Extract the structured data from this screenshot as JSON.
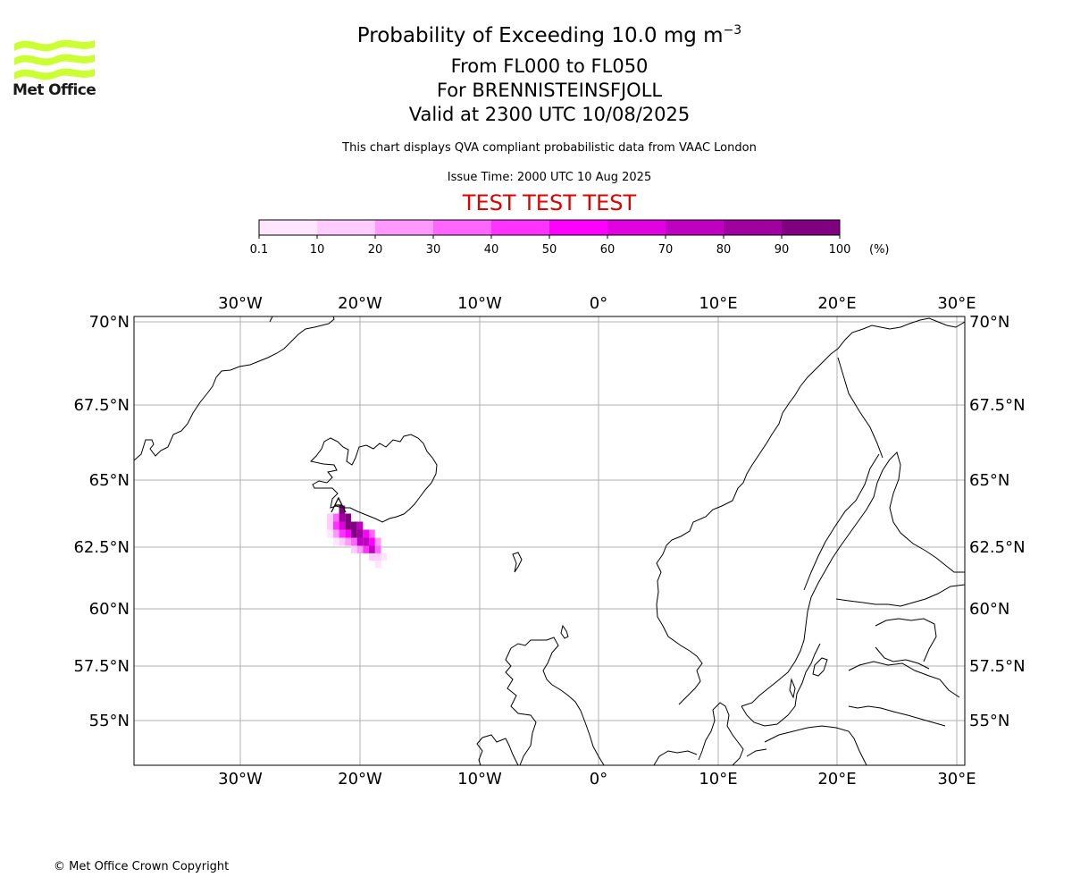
{
  "header": {
    "title_main": "Probability of Exceeding 10.0 mg m",
    "title_exponent": "−3",
    "level_range": "From FL000 to FL050",
    "volcano": "For BRENNISTEINSFJOLL",
    "valid_time": "Valid at 2300 UTC 10/08/2025",
    "note": "This chart displays QVA compliant probabilistic data from VAAC London",
    "issue_time": "Issue Time: 2000 UTC 10 Aug 2025",
    "test_banner": "TEST TEST TEST"
  },
  "logo": {
    "text": "Met Office",
    "color": "#ccff33"
  },
  "colorbar": {
    "ticks": [
      "0.1",
      "10",
      "20",
      "30",
      "40",
      "50",
      "60",
      "70",
      "80",
      "90",
      "100"
    ],
    "unit": "(%)",
    "colors": [
      "#ffe6ff",
      "#ffccff",
      "#ff99ff",
      "#ff66ff",
      "#ff33ff",
      "#ff00ff",
      "#e000e0",
      "#c000c0",
      "#a000a0",
      "#800080",
      "#600060"
    ]
  },
  "map": {
    "lon_labels": [
      "30°W",
      "20°W",
      "10°W",
      "0°",
      "10°E",
      "20°E",
      "30°E"
    ],
    "lat_labels": [
      "70°N",
      "67.5°N",
      "65°N",
      "62.5°N",
      "60°N",
      "57.5°N",
      "55°N"
    ]
  },
  "chart_data": {
    "type": "heatmap",
    "title": "Probability of Exceeding 10.0 mg m−3",
    "xlabel": "",
    "ylabel": "",
    "xlim": [
      -39,
      30.5
    ],
    "ylim": [
      53.3,
      70.2
    ],
    "units": "%",
    "plume_cells": [
      {
        "lon": -21.5,
        "lat": 63.9,
        "p": 95
      },
      {
        "lon": -21.5,
        "lat": 63.6,
        "p": 85
      },
      {
        "lon": -21.0,
        "lat": 63.6,
        "p": 95
      },
      {
        "lon": -21.0,
        "lat": 63.3,
        "p": 95
      },
      {
        "lon": -20.5,
        "lat": 63.3,
        "p": 95
      },
      {
        "lon": -20.5,
        "lat": 63.0,
        "p": 90
      },
      {
        "lon": -20.0,
        "lat": 63.0,
        "p": 85
      },
      {
        "lon": -20.0,
        "lat": 62.7,
        "p": 75
      },
      {
        "lon": -19.5,
        "lat": 62.7,
        "p": 70
      },
      {
        "lon": -19.0,
        "lat": 62.4,
        "p": 75
      },
      {
        "lon": -22.0,
        "lat": 63.3,
        "p": 45
      },
      {
        "lon": -22.0,
        "lat": 63.6,
        "p": 35
      },
      {
        "lon": -21.5,
        "lat": 63.3,
        "p": 65
      },
      {
        "lon": -21.5,
        "lat": 63.0,
        "p": 45
      },
      {
        "lon": -21.0,
        "lat": 63.0,
        "p": 55
      },
      {
        "lon": -21.0,
        "lat": 62.7,
        "p": 25
      },
      {
        "lon": -20.5,
        "lat": 62.7,
        "p": 35
      },
      {
        "lon": -20.0,
        "lat": 62.4,
        "p": 25
      },
      {
        "lon": -20.0,
        "lat": 63.3,
        "p": 75
      },
      {
        "lon": -19.5,
        "lat": 63.0,
        "p": 55
      },
      {
        "lon": -19.0,
        "lat": 63.0,
        "p": 35
      },
      {
        "lon": -19.0,
        "lat": 62.7,
        "p": 55
      },
      {
        "lon": -18.5,
        "lat": 62.7,
        "p": 25
      },
      {
        "lon": -18.5,
        "lat": 62.4,
        "p": 35
      },
      {
        "lon": -19.5,
        "lat": 62.4,
        "p": 45
      },
      {
        "lon": -18.5,
        "lat": 62.1,
        "p": 15
      },
      {
        "lon": -19.0,
        "lat": 62.1,
        "p": 15
      },
      {
        "lon": -22.5,
        "lat": 63.3,
        "p": 15
      },
      {
        "lon": -22.5,
        "lat": 63.0,
        "p": 8
      },
      {
        "lon": -22.0,
        "lat": 63.0,
        "p": 20
      },
      {
        "lon": -22.0,
        "lat": 62.7,
        "p": 8
      },
      {
        "lon": -21.5,
        "lat": 62.7,
        "p": 15
      },
      {
        "lon": -20.5,
        "lat": 62.4,
        "p": 12
      },
      {
        "lon": -18.0,
        "lat": 62.1,
        "p": 8
      },
      {
        "lon": -18.5,
        "lat": 61.8,
        "p": 8
      },
      {
        "lon": -22.5,
        "lat": 63.6,
        "p": 12
      }
    ],
    "source_marker": {
      "lon": -21.8,
      "lat": 64.0
    }
  },
  "footer": {
    "copyright": "© Met Office Crown Copyright"
  }
}
